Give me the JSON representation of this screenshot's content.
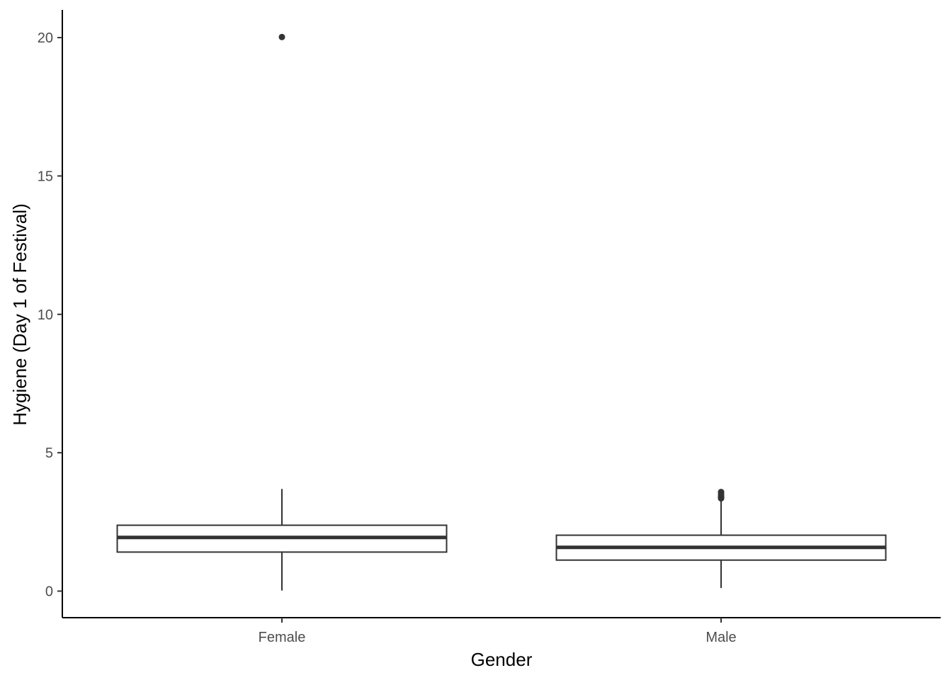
{
  "chart_data": {
    "type": "boxplot",
    "title": "",
    "xlabel": "Gender",
    "ylabel": "Hygiene (Day 1 of Festival)",
    "categories": [
      "Female",
      "Male"
    ],
    "boxes": [
      {
        "category": "Female",
        "whisker_low": 0.02,
        "q1": 1.41,
        "median": 1.94,
        "q3": 2.38,
        "whisker_high": 3.69,
        "outliers": [
          20.02
        ]
      },
      {
        "category": "Male",
        "whisker_low": 0.11,
        "q1": 1.12,
        "median": 1.58,
        "q3": 2.02,
        "whisker_high": 3.32,
        "outliers": [
          3.35,
          3.38,
          3.41,
          3.44,
          3.52,
          3.58
        ]
      }
    ],
    "yticks": [
      0,
      5,
      10,
      15,
      20
    ],
    "ytick_labels": [
      "0",
      "5",
      "10",
      "15",
      "20"
    ],
    "ylim": [
      -0.96,
      21.0
    ],
    "grid": false,
    "legend": "none",
    "colors": {
      "box_fill": "#ffffff",
      "box_line": "#333333",
      "axis": "#000000",
      "tick_text": "#4d4d4d"
    }
  }
}
